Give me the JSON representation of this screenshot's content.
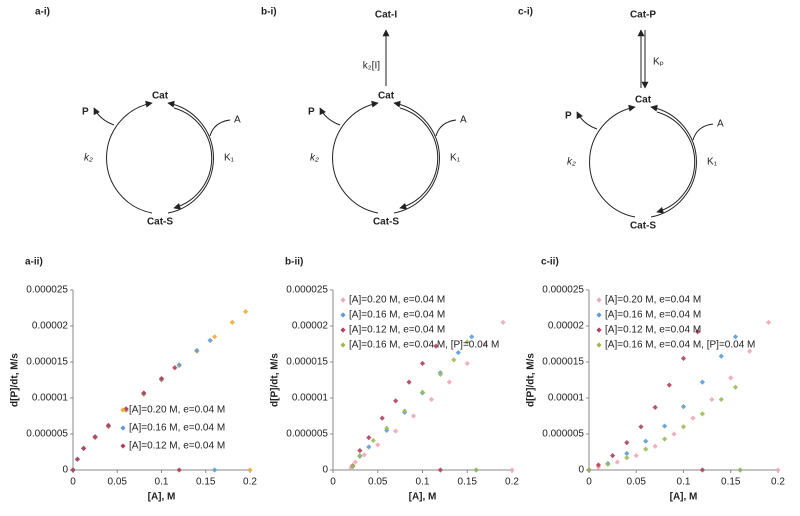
{
  "diagrams": [
    {
      "label": "a-i)",
      "top": "Cat",
      "bottom": "Cat-S",
      "product": "P",
      "substrate": "A",
      "k": "k₂",
      "K": "K₁"
    },
    {
      "label": "b-i)",
      "top": "Cat",
      "bottom": "Cat-S",
      "product": "P",
      "substrate": "A",
      "k": "k₂",
      "K": "K₁",
      "side": "Cat-I",
      "side_rate": "k₂[I]"
    },
    {
      "label": "c-i)",
      "top": "Cat",
      "bottom": "Cat-S",
      "product": "P",
      "substrate": "A",
      "k": "k₂",
      "K": "K₁",
      "side": "Cat-P",
      "side_rate": "Kₚ"
    }
  ],
  "chart_data": [
    {
      "type": "scatter",
      "label": "a-ii)",
      "xlabel": "[A], M",
      "ylabel": "d[P]/dt, M/s",
      "xlim": [
        0,
        0.2
      ],
      "ylim": [
        0,
        2.5e-05
      ],
      "xticks": [
        0,
        0.05,
        0.1,
        0.15,
        0.2
      ],
      "yticks": [
        0,
        5e-06,
        1e-05,
        1.5e-05,
        2e-05,
        2.5e-05
      ],
      "legend": "lower-right",
      "series": [
        {
          "name": "[A]=0.20 M, e=0.04 M",
          "color": "#f5a83a",
          "x": [
            0.2,
            0.195,
            0.18,
            0.16,
            0.14,
            0.12,
            0.1,
            0.08,
            0.06,
            0.04,
            0.025,
            0.012,
            0.005,
            0
          ],
          "values": [
            0,
            2.2e-05,
            2.05e-05,
            1.85e-05,
            1.65e-05,
            1.45e-05,
            1.25e-05,
            1.05e-05,
            8.3e-06,
            6e-06,
            4.5e-06,
            3e-06,
            1.5e-06,
            0
          ]
        },
        {
          "name": "[A]=0.16 M, e=0.04 M",
          "color": "#5b9bd5",
          "x": [
            0.16,
            0.155,
            0.14,
            0.12,
            0.1,
            0.08,
            0.06,
            0.04,
            0.025,
            0.012,
            0.005,
            0
          ],
          "values": [
            0,
            1.8e-05,
            1.66e-05,
            1.46e-05,
            1.26e-05,
            1.06e-05,
            8.4e-06,
            6.1e-06,
            4.6e-06,
            3e-06,
            1.5e-06,
            0
          ]
        },
        {
          "name": "[A]=0.12 M, e=0.04 M",
          "color": "#b0405a",
          "x": [
            0.12,
            0.115,
            0.1,
            0.08,
            0.06,
            0.04,
            0.025,
            0.012,
            0.005,
            0
          ],
          "values": [
            0,
            1.42e-05,
            1.27e-05,
            1.07e-05,
            8.5e-06,
            6.2e-06,
            4.6e-06,
            3e-06,
            1.5e-06,
            0
          ]
        }
      ]
    },
    {
      "type": "scatter",
      "label": "b-ii)",
      "xlabel": "[A], M",
      "ylabel": "d[P]/dt, M/s",
      "xlim": [
        0,
        0.2
      ],
      "ylim": [
        0,
        2.5e-05
      ],
      "xticks": [
        0,
        0.05,
        0.1,
        0.15,
        0.2
      ],
      "yticks": [
        0,
        5e-06,
        1e-05,
        1.5e-05,
        2e-05,
        2.5e-05
      ],
      "legend": "upper-left",
      "series": [
        {
          "name": "[A]=0.20 M, e=0.04 M",
          "color": "#f2a6b4",
          "x": [
            0.2,
            0.19,
            0.17,
            0.15,
            0.13,
            0.11,
            0.09,
            0.07,
            0.05,
            0.035,
            0.025,
            0.02
          ],
          "values": [
            0,
            2.05e-05,
            1.75e-05,
            1.48e-05,
            1.22e-05,
            9.8e-06,
            7.5e-06,
            5.4e-06,
            3.5e-06,
            2.1e-06,
            1.1e-06,
            3e-07
          ]
        },
        {
          "name": "[A]=0.16 M, e=0.04 M",
          "color": "#5b9bd5",
          "x": [
            0.16,
            0.155,
            0.14,
            0.12,
            0.1,
            0.08,
            0.06,
            0.04,
            0.03,
            0.022
          ],
          "values": [
            0,
            1.85e-05,
            1.63e-05,
            1.35e-05,
            1.07e-05,
            8e-06,
            5.5e-06,
            3.2e-06,
            1.9e-06,
            5e-07
          ]
        },
        {
          "name": "[A]=0.12 M, e=0.04 M",
          "color": "#b0405a",
          "x": [
            0.12,
            0.115,
            0.1,
            0.085,
            0.07,
            0.055,
            0.04,
            0.03,
            0.022
          ],
          "values": [
            0,
            1.72e-05,
            1.48e-05,
            1.22e-05,
            9.6e-06,
            7.2e-06,
            4.5e-06,
            2.7e-06,
            6e-07
          ]
        },
        {
          "name": "[A]=0.16 M, e=0.04 M, [P]=0.04 M",
          "color": "#9bbb59",
          "x": [
            0.16,
            0.15,
            0.135,
            0.12,
            0.1,
            0.08,
            0.06,
            0.045,
            0.03,
            0.022
          ],
          "values": [
            0,
            1.78e-05,
            1.53e-05,
            1.33e-05,
            1.08e-05,
            8.2e-06,
            5.8e-06,
            4.1e-06,
            2e-06,
            5e-07
          ]
        }
      ]
    },
    {
      "type": "scatter",
      "label": "c-ii)",
      "xlabel": "[A], M",
      "ylabel": "d[P]/dt, M/s",
      "xlim": [
        0,
        0.2
      ],
      "ylim": [
        0,
        2.5e-05
      ],
      "xticks": [
        0,
        0.05,
        0.1,
        0.15,
        0.2
      ],
      "yticks": [
        0,
        5e-06,
        1e-05,
        1.5e-05,
        2e-05,
        2.5e-05
      ],
      "legend": "upper-left",
      "series": [
        {
          "name": "[A]=0.20 M, e=0.04 M",
          "color": "#f2a6b4",
          "x": [
            0.2,
            0.19,
            0.17,
            0.15,
            0.13,
            0.11,
            0.09,
            0.07,
            0.05,
            0.03,
            0.01,
            0
          ],
          "values": [
            0,
            2.05e-05,
            1.65e-05,
            1.28e-05,
            9.8e-06,
            7.2e-06,
            5e-06,
            3.3e-06,
            2e-06,
            1.1e-06,
            4e-07,
            0
          ]
        },
        {
          "name": "[A]=0.16 M, e=0.04 M",
          "color": "#5b9bd5",
          "x": [
            0.16,
            0.155,
            0.14,
            0.12,
            0.1,
            0.08,
            0.06,
            0.04,
            0.02,
            0
          ],
          "values": [
            0,
            1.85e-05,
            1.58e-05,
            1.22e-05,
            8.8e-06,
            6.1e-06,
            4e-06,
            2.3e-06,
            9e-07,
            0
          ]
        },
        {
          "name": "[A]=0.12 M, e=0.04 M",
          "color": "#b0405a",
          "x": [
            0.12,
            0.115,
            0.1,
            0.085,
            0.07,
            0.055,
            0.04,
            0.025,
            0.01,
            0
          ],
          "values": [
            0,
            1.92e-05,
            1.55e-05,
            1.18e-05,
            8.7e-06,
            6e-06,
            3.8e-06,
            2e-06,
            7e-07,
            0
          ]
        },
        {
          "name": "[A]=0.16 M, e=0.04 M, [P]=0.04 M",
          "color": "#9bbb59",
          "x": [
            0.16,
            0.155,
            0.14,
            0.12,
            0.1,
            0.08,
            0.06,
            0.04,
            0.02,
            0
          ],
          "values": [
            0,
            1.15e-05,
            9.8e-06,
            7.8e-06,
            6e-06,
            4.3e-06,
            2.9e-06,
            1.7e-06,
            8e-07,
            0
          ]
        }
      ]
    }
  ]
}
